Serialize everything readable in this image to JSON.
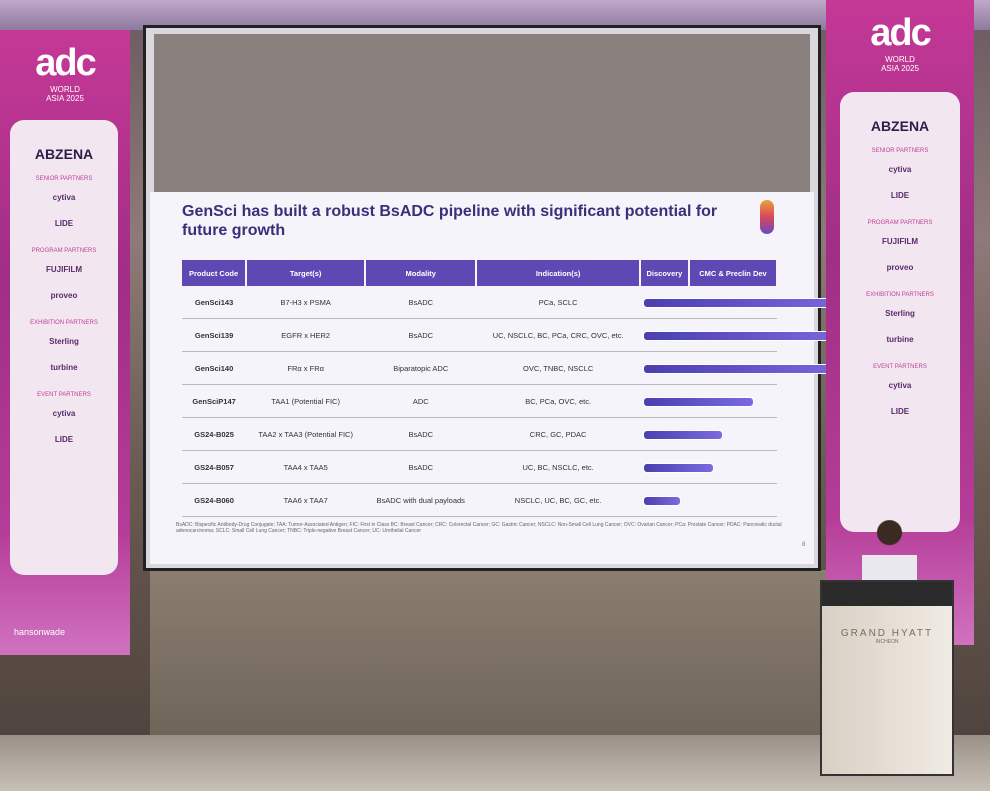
{
  "slide": {
    "title": "GenSci has built a robust BsADC pipeline with significant potential for future growth",
    "headers": [
      "Product Code",
      "Target(s)",
      "Modality",
      "Indication(s)",
      "Discovery",
      "CMC & Preclin Dev"
    ],
    "rows": [
      {
        "code": "GenSci143",
        "target": "B7-H3 x PSMA",
        "modality": "BsADC",
        "indication": "PCa, SCLC",
        "progress": 1.0
      },
      {
        "code": "GenSci139",
        "target": "EGFR x HER2",
        "modality": "BsADC",
        "indication": "UC, NSCLC, BC, PCa, CRC, OVC, etc.",
        "progress": 1.0
      },
      {
        "code": "GenSci140",
        "target": "FRα x FRα",
        "modality": "Biparatopic ADC",
        "indication": "OVC, TNBC, NSCLC",
        "progress": 1.0
      },
      {
        "code": "GenSciP147",
        "target": "TAA1 (Potential FIC)",
        "modality": "ADC",
        "indication": "BC, PCa, OVC, etc.",
        "progress": 0.52
      },
      {
        "code": "GS24-B025",
        "target": "TAA2 x TAA3 (Potential FIC)",
        "modality": "BsADC",
        "indication": "CRC, GC, PDAC",
        "progress": 0.37
      },
      {
        "code": "GS24-B057",
        "target": "TAA4 x TAA5",
        "modality": "BsADC",
        "indication": "UC, BC, NSCLC, etc.",
        "progress": 0.33
      },
      {
        "code": "GS24-B060",
        "target": "TAA6 x TAA7",
        "modality": "BsADC with dual payloads",
        "indication": "NSCLC, UC, BC, GC, etc.",
        "progress": 0.17
      }
    ],
    "footnote": "BsADC: Bispecific Antibody-Drug Conjugate; TAA: Tumor-Associated Antigen; FIC: First in Class BC: Breast Cancer; CRC: Colorectal Cancer; GC: Gastric Cancer; NSCLC: Non-Small Cell Lung Cancer; OVC: Ovarian Cancer; PCa: Prostate Cancer; PDAC: Pancreatic ductal adenocarcinoma; SCLC: Small Cell Lung Cancer; TNBC: Triple-negative Breast Cancer; UC: Urothelial Cancer",
    "page": "8"
  },
  "banner": {
    "brand": "adc",
    "world": "WORLD",
    "edition": "ASIA 2025",
    "lead": "ABZENA",
    "senior": "SENIOR PARTNERS",
    "program": "PROGRAM PARTNERS",
    "exhibition": "EXHIBITION PARTNERS",
    "event": "EVENT PARTNERS",
    "sponsors": [
      "cytiva",
      "LIDE",
      "FUJIFILM",
      "proveo",
      "Sterling",
      "turbine"
    ],
    "organizer": "hansonwade"
  },
  "podium": {
    "name": "GRAND HYATT",
    "city": "INCHEON"
  }
}
